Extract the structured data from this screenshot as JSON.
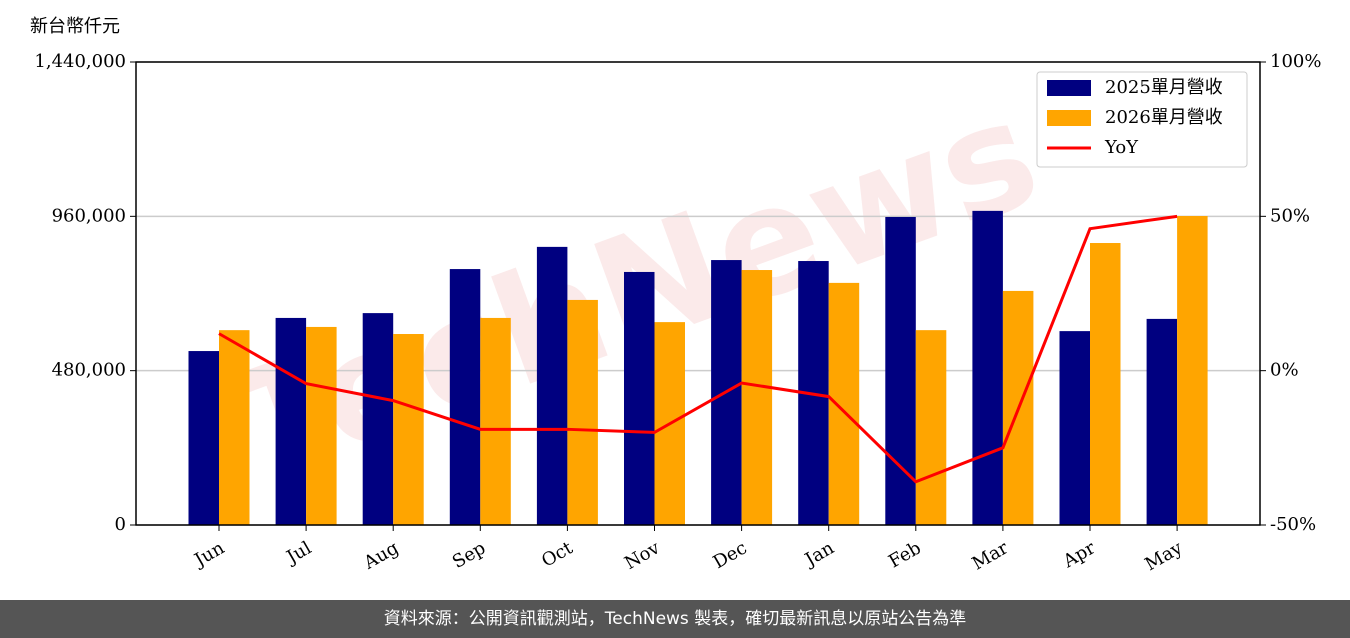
{
  "chart_data": {
    "type": "bar-line",
    "y_label": "新台幣仟元",
    "watermark": "TechNews",
    "categories": [
      "Jun",
      "Jul",
      "Aug",
      "Sep",
      "Oct",
      "Nov",
      "Dec",
      "Jan",
      "Feb",
      "Mar",
      "Apr",
      "May"
    ],
    "series": [
      {
        "name": "2025單月營收",
        "color": "#000080",
        "type": "bar",
        "values": [
          541000,
          644000,
          659000,
          796000,
          865000,
          787000,
          824000,
          821000,
          958000,
          977000,
          603000,
          641000
        ]
      },
      {
        "name": "2026單月營收",
        "color": "#ffa500",
        "type": "bar",
        "values": [
          606000,
          616000,
          594000,
          644000,
          700000,
          631000,
          793000,
          753000,
          606000,
          728000,
          877000,
          961000
        ]
      },
      {
        "name": "YoY",
        "color": "#ff0000",
        "type": "line",
        "axis": "y2",
        "values": [
          12,
          -4.2,
          -9.7,
          -19,
          -19,
          -20,
          -4,
          -8.4,
          -36,
          -25,
          46,
          50
        ]
      }
    ],
    "ylim": [
      0,
      1440000
    ],
    "yticks": [
      0,
      {
        "value": 480000,
        "label": "480,000"
      },
      {
        "value": 960000,
        "label": "960,000"
      },
      {
        "value": 1440000,
        "label": "1,440,000"
      }
    ],
    "y2lim": [
      -50,
      100
    ],
    "y2ticks": [
      {
        "value": -50,
        "label": "-50%"
      },
      {
        "value": 0,
        "label": "0%"
      },
      {
        "value": 50,
        "label": "50%"
      },
      {
        "value": 100,
        "label": "100%"
      }
    ],
    "grid": true,
    "legend": "upper right"
  },
  "footer": "資料來源：公開資訊觀測站，TechNews 製表，確切最新訊息以原站公告為準"
}
